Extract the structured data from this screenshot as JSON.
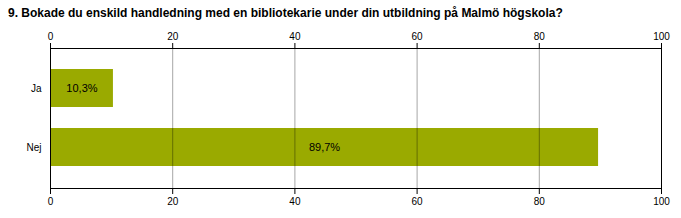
{
  "chart_data": {
    "type": "bar",
    "orientation": "horizontal",
    "title": "9. Bokade du enskild handledning med en bibliotekarie under din utbildning på Malmö högskola?",
    "categories": [
      "Ja",
      "Nej"
    ],
    "values": [
      10.3,
      89.7
    ],
    "value_labels": [
      "10,3%",
      "89,7%"
    ],
    "color": "#9aaa00",
    "xlim": [
      0,
      100
    ],
    "xticks": [
      0,
      20,
      40,
      60,
      80,
      100
    ],
    "grid": true,
    "data_labels": true
  }
}
